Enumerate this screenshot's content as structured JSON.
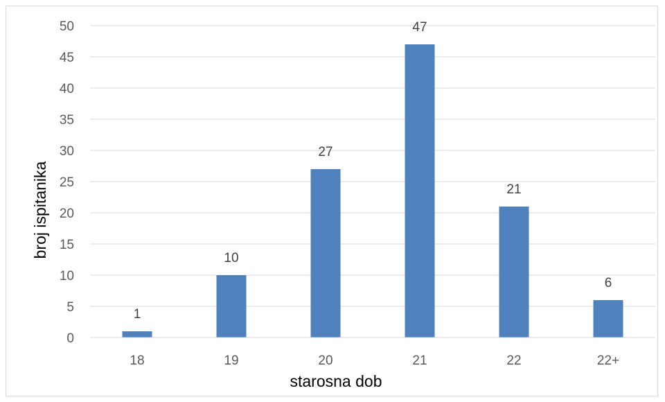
{
  "chart_data": {
    "type": "bar",
    "categories": [
      "18",
      "19",
      "20",
      "21",
      "22",
      "22+"
    ],
    "values": [
      1,
      10,
      27,
      47,
      21,
      6
    ],
    "data_labels": [
      "1",
      "10",
      "27",
      "47",
      "21",
      "6"
    ],
    "yticks": [
      "0",
      "5",
      "10",
      "15",
      "20",
      "25",
      "30",
      "35",
      "40",
      "45",
      "50"
    ],
    "ylim": [
      0,
      50
    ],
    "xlabel": "starosna dob",
    "ylabel": "broj ispitanika",
    "grid": true,
    "legend": "none",
    "bar_color": "#4f81bd",
    "grid_color": "#d9d9d9"
  }
}
